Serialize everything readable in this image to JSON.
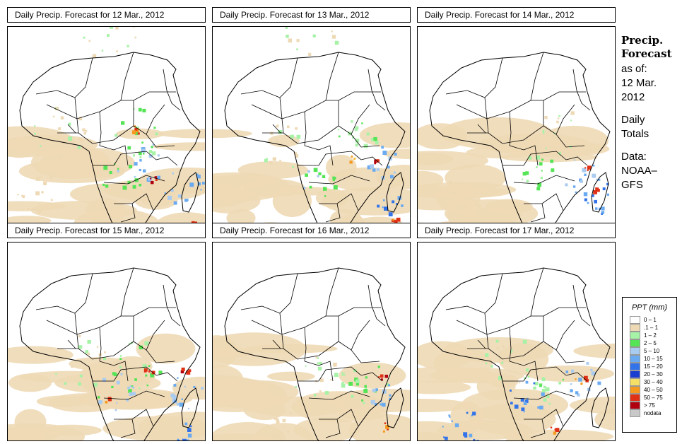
{
  "panels": [
    {
      "title": "Daily Precip. Forecast for  12 Mar., 2012"
    },
    {
      "title": "Daily Precip. Forecast for  13 Mar., 2012"
    },
    {
      "title": "Daily Precip. Forecast for  14 Mar., 2012"
    },
    {
      "title": "Daily Precip. Forecast for  15 Mar., 2012"
    },
    {
      "title": "Daily Precip. Forecast for  16 Mar., 2012"
    },
    {
      "title": "Daily Precip. Forecast for  17 Mar., 2012"
    }
  ],
  "side": {
    "title_line1": "Precip.",
    "title_line2": "Forecast",
    "asof": "as of:",
    "date_line1": "12 Mar.",
    "date_line2": "2012",
    "totals_line1": "Daily",
    "totals_line2": "Totals",
    "data_line1": "Data:",
    "data_line2": "NOAA–",
    "data_line3": "GFS"
  },
  "legend": {
    "title": "PPT (mm)",
    "items": [
      {
        "label": "0 – 1",
        "color": "#ffffff"
      },
      {
        "label": ".1 – 1",
        "color": "#eed9b5"
      },
      {
        "label": "1 – 2",
        "color": "#a6f2a6"
      },
      {
        "label": "2 – 5",
        "color": "#55e455"
      },
      {
        "label": "5 – 10",
        "color": "#a9cbf0"
      },
      {
        "label": "10 – 15",
        "color": "#6aaaf0"
      },
      {
        "label": "15 – 20",
        "color": "#3273ea"
      },
      {
        "label": "20 – 30",
        "color": "#1a3fd0"
      },
      {
        "label": "30 – 40",
        "color": "#f5df66"
      },
      {
        "label": "40 – 50",
        "color": "#f59a1f"
      },
      {
        "label": "50 – 75",
        "color": "#e03015"
      },
      {
        "label": "> 75",
        "color": "#b00010"
      },
      {
        "label": "nodata",
        "color": "#c8c8c8"
      }
    ]
  }
}
